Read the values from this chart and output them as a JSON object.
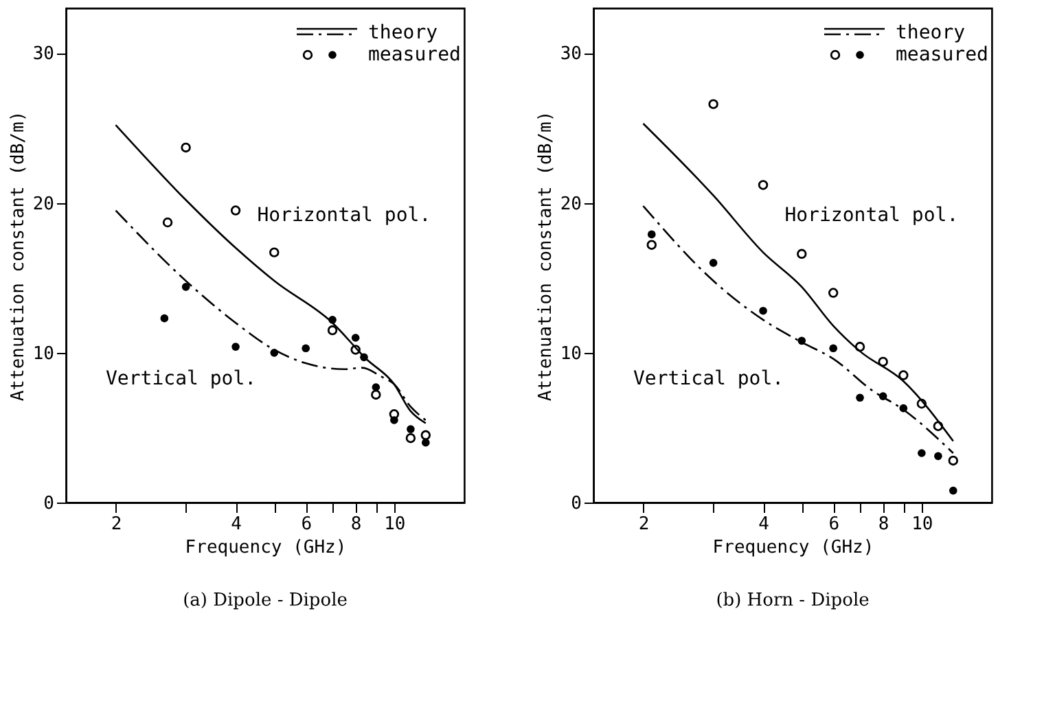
{
  "chart_data": [
    {
      "type": "line",
      "title": "(a) Dipole - Dipole",
      "xlabel": "Frequency (GHz)",
      "ylabel": "Attenuation constant (dB/m)",
      "log": "x",
      "grid": false,
      "legend": "top right",
      "xlim": [
        1.5,
        15
      ],
      "ylim": [
        0,
        33
      ],
      "xticks": [
        2,
        {
          "value": 3,
          "label": null
        },
        4,
        {
          "value": 5,
          "label": null
        },
        6,
        {
          "value": 7,
          "label": null
        },
        8,
        {
          "value": 9,
          "label": null
        },
        10
      ],
      "yticks": [
        0,
        10,
        20,
        30
      ],
      "annotations": [
        "Horizontal pol.",
        "Vertical pol."
      ],
      "series": [
        {
          "name": "theory",
          "type": "line",
          "line_style": "solid",
          "color": "#000000",
          "x": [
            2,
            3,
            4,
            5,
            7,
            8.5,
            10,
            11,
            12
          ],
          "values": [
            25.2,
            20.2,
            17.0,
            14.8,
            12.0,
            9.6,
            7.9,
            6.1,
            5.3
          ]
        },
        {
          "type": "line",
          "line_style": "dashed",
          "color": "#000000",
          "x": [
            2,
            3,
            4,
            5,
            6,
            7.5,
            8.3,
            9.3,
            10,
            11,
            12
          ],
          "values": [
            19.5,
            14.8,
            12.0,
            10.2,
            9.3,
            8.9,
            9.0,
            8.4,
            7.9,
            6.4,
            5.5
          ]
        },
        {
          "name": "measured",
          "type": "scatter",
          "marker": "circle",
          "color": "#000000",
          "x": [
            2.65,
            3,
            4,
            5,
            6,
            7,
            8,
            8.4,
            9,
            10,
            11,
            12
          ],
          "values": [
            12.3,
            14.4,
            10.4,
            10.0,
            10.3,
            12.2,
            11.0,
            9.7,
            7.7,
            5.5,
            4.9,
            4.0
          ]
        },
        {
          "type": "scatter",
          "marker": "circle",
          "color": "#000000",
          "x": [
            2.7,
            3,
            4,
            5,
            7,
            8,
            9,
            10,
            11,
            12
          ],
          "values": [
            18.7,
            23.7,
            19.5,
            16.7,
            11.5,
            10.2,
            7.2,
            5.9,
            4.3,
            4.5
          ]
        }
      ]
    },
    {
      "type": "line",
      "title": "(b) Horn - Dipole",
      "xlabel": "Frequency (GHz)",
      "ylabel": "Attenuation constant (dB/m)",
      "log": "x",
      "grid": false,
      "legend": "top right",
      "xlim": [
        1.5,
        15
      ],
      "ylim": [
        0,
        33
      ],
      "xticks": [
        2,
        {
          "value": 3,
          "label": null
        },
        4,
        {
          "value": 5,
          "label": null
        },
        6,
        {
          "value": 7,
          "label": null
        },
        8,
        {
          "value": 9,
          "label": null
        },
        10
      ],
      "yticks": [
        0,
        10,
        20,
        30
      ],
      "annotations": [
        "Horizontal pol.",
        "Vertical pol."
      ],
      "series": [
        {
          "name": "theory",
          "type": "line",
          "line_style": "solid",
          "color": "#000000",
          "x": [
            2,
            3,
            4,
            5,
            6,
            7,
            9,
            12
          ],
          "values": [
            25.3,
            20.5,
            16.7,
            14.4,
            11.8,
            10.1,
            8.1,
            4.1
          ]
        },
        {
          "type": "line",
          "line_style": "dashed",
          "color": "#000000",
          "x": [
            2,
            3,
            4,
            5,
            6,
            7.5,
            9,
            12
          ],
          "values": [
            19.8,
            14.8,
            12.2,
            10.7,
            9.6,
            7.5,
            6.2,
            3.3
          ]
        },
        {
          "name": "measured",
          "type": "scatter",
          "marker": "circle",
          "color": "#000000",
          "x": [
            2.1,
            3,
            4,
            5,
            6,
            7,
            8,
            9,
            10,
            11,
            12
          ],
          "values": [
            17.9,
            16.0,
            12.8,
            10.8,
            10.3,
            7.0,
            7.1,
            6.3,
            3.3,
            3.1,
            0.8
          ]
        },
        {
          "type": "scatter",
          "marker": "circle",
          "color": "#000000",
          "x": [
            2.1,
            3,
            4,
            5,
            6,
            7,
            8,
            9,
            10,
            11,
            12
          ],
          "values": [
            17.2,
            26.6,
            21.2,
            16.6,
            14.0,
            10.4,
            9.4,
            8.5,
            6.6,
            5.1,
            2.8
          ]
        }
      ]
    }
  ]
}
